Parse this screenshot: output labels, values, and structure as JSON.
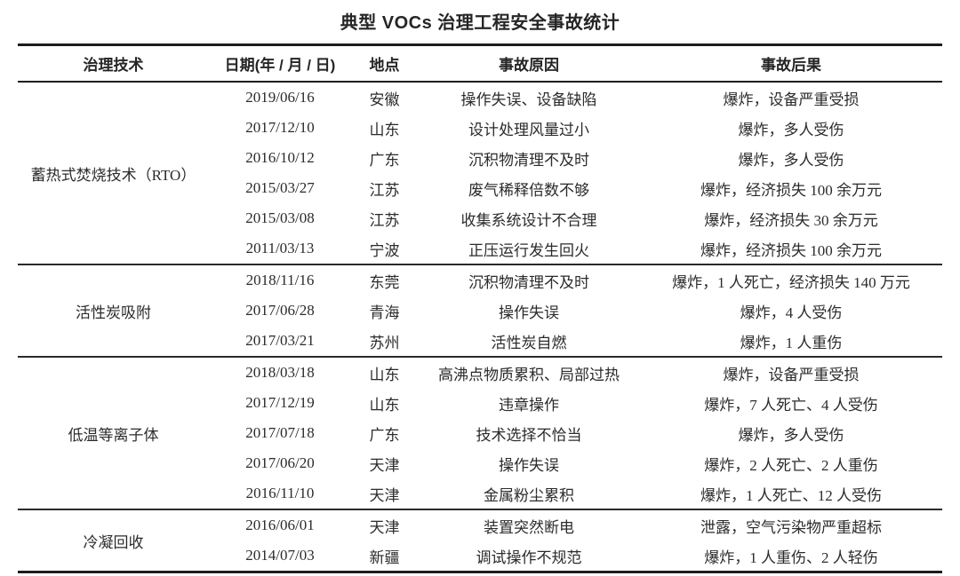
{
  "page": {
    "title": "典型 VOCs 治理工程安全事故统计"
  },
  "colors": {
    "background": "#ffffff",
    "text": "#2b2b2b",
    "rule": "#1d1d1d"
  },
  "table": {
    "columns": [
      "治理技术",
      "日期(年 / 月 / 日)",
      "地点",
      "事故原因",
      "事故后果"
    ],
    "sections": [
      {
        "technology": "蓄热式焚烧技术（RTO）",
        "rows": [
          {
            "date": "2019/06/16",
            "location": "安徽",
            "cause": "操作失误、设备缺陷",
            "consequence": "爆炸，设备严重受损"
          },
          {
            "date": "2017/12/10",
            "location": "山东",
            "cause": "设计处理风量过小",
            "consequence": "爆炸，多人受伤"
          },
          {
            "date": "2016/10/12",
            "location": "广东",
            "cause": "沉积物清理不及时",
            "consequence": "爆炸，多人受伤"
          },
          {
            "date": "2015/03/27",
            "location": "江苏",
            "cause": "废气稀释倍数不够",
            "consequence": "爆炸，经济损失 100 余万元"
          },
          {
            "date": "2015/03/08",
            "location": "江苏",
            "cause": "收集系统设计不合理",
            "consequence": "爆炸，经济损失 30 余万元"
          },
          {
            "date": "2011/03/13",
            "location": "宁波",
            "cause": "正压运行发生回火",
            "consequence": "爆炸，经济损失 100 余万元"
          }
        ]
      },
      {
        "technology": "活性炭吸附",
        "rows": [
          {
            "date": "2018/11/16",
            "location": "东莞",
            "cause": "沉积物清理不及时",
            "consequence": "爆炸，1 人死亡，经济损失 140 万元"
          },
          {
            "date": "2017/06/28",
            "location": "青海",
            "cause": "操作失误",
            "consequence": "爆炸，4 人受伤"
          },
          {
            "date": "2017/03/21",
            "location": "苏州",
            "cause": "活性炭自燃",
            "consequence": "爆炸，1 人重伤"
          }
        ]
      },
      {
        "technology": "低温等离子体",
        "rows": [
          {
            "date": "2018/03/18",
            "location": "山东",
            "cause": "高沸点物质累积、局部过热",
            "consequence": "爆炸，设备严重受损"
          },
          {
            "date": "2017/12/19",
            "location": "山东",
            "cause": "违章操作",
            "consequence": "爆炸，7 人死亡、4 人受伤"
          },
          {
            "date": "2017/07/18",
            "location": "广东",
            "cause": "技术选择不恰当",
            "consequence": "爆炸，多人受伤"
          },
          {
            "date": "2017/06/20",
            "location": "天津",
            "cause": "操作失误",
            "consequence": "爆炸，2 人死亡、2 人重伤"
          },
          {
            "date": "2016/11/10",
            "location": "天津",
            "cause": "金属粉尘累积",
            "consequence": "爆炸，1 人死亡、12 人受伤"
          }
        ]
      },
      {
        "technology": "冷凝回收",
        "rows": [
          {
            "date": "2016/06/01",
            "location": "天津",
            "cause": "装置突然断电",
            "consequence": "泄露，空气污染物严重超标"
          },
          {
            "date": "2014/07/03",
            "location": "新疆",
            "cause": "调试操作不规范",
            "consequence": "爆炸，1 人重伤、2 人轻伤"
          }
        ]
      }
    ]
  }
}
